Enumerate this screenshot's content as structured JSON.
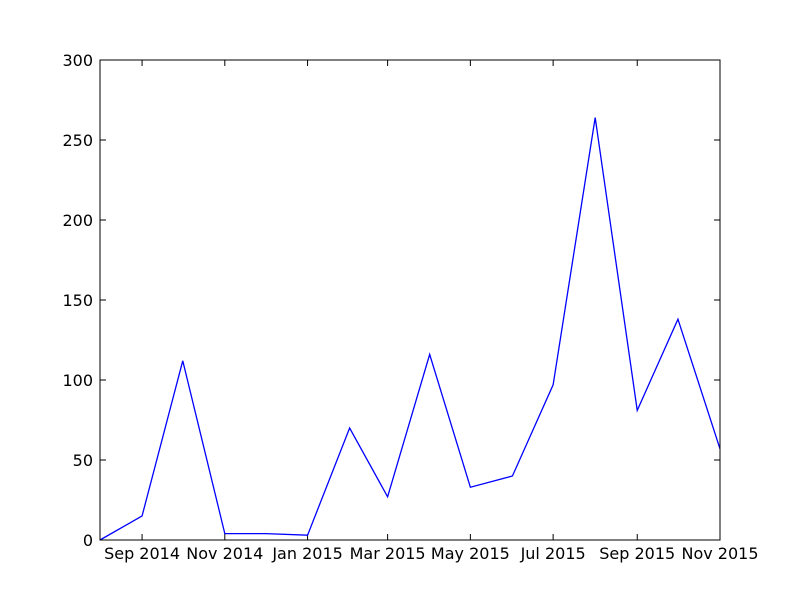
{
  "chart_data": {
    "type": "line",
    "title": "",
    "xlabel": "",
    "ylabel": "",
    "x": [
      "2014-08-01",
      "2014-09-01",
      "2014-10-01",
      "2014-11-01",
      "2014-12-01",
      "2015-01-01",
      "2015-02-01",
      "2015-03-01",
      "2015-04-01",
      "2015-05-01",
      "2015-06-01",
      "2015-07-01",
      "2015-08-01",
      "2015-09-01",
      "2015-10-01",
      "2015-11-01"
    ],
    "series": [
      {
        "values": [
          0,
          15,
          112,
          4,
          4,
          3,
          70,
          27,
          116,
          33,
          40,
          97,
          264,
          81,
          138,
          57
        ],
        "color": "#0000ff"
      }
    ],
    "xlim": [
      "2014-08-01",
      "2015-11-01"
    ],
    "ylim": [
      0,
      300
    ],
    "xticks": [
      {
        "date": "2014-09-01",
        "label": "Sep 2014"
      },
      {
        "date": "2014-11-01",
        "label": "Nov 2014"
      },
      {
        "date": "2015-01-01",
        "label": "Jan 2015"
      },
      {
        "date": "2015-03-01",
        "label": "Mar 2015"
      },
      {
        "date": "2015-05-01",
        "label": "May 2015"
      },
      {
        "date": "2015-07-01",
        "label": "Jul 2015"
      },
      {
        "date": "2015-09-01",
        "label": "Sep 2015"
      },
      {
        "date": "2015-11-01",
        "label": "Nov 2015"
      }
    ],
    "yticks": [
      {
        "value": 0,
        "label": "0"
      },
      {
        "value": 50,
        "label": "50"
      },
      {
        "value": 100,
        "label": "100"
      },
      {
        "value": 150,
        "label": "150"
      },
      {
        "value": 200,
        "label": "200"
      },
      {
        "value": 250,
        "label": "250"
      },
      {
        "value": 300,
        "label": "300"
      }
    ],
    "grid": false,
    "legend": "none"
  }
}
